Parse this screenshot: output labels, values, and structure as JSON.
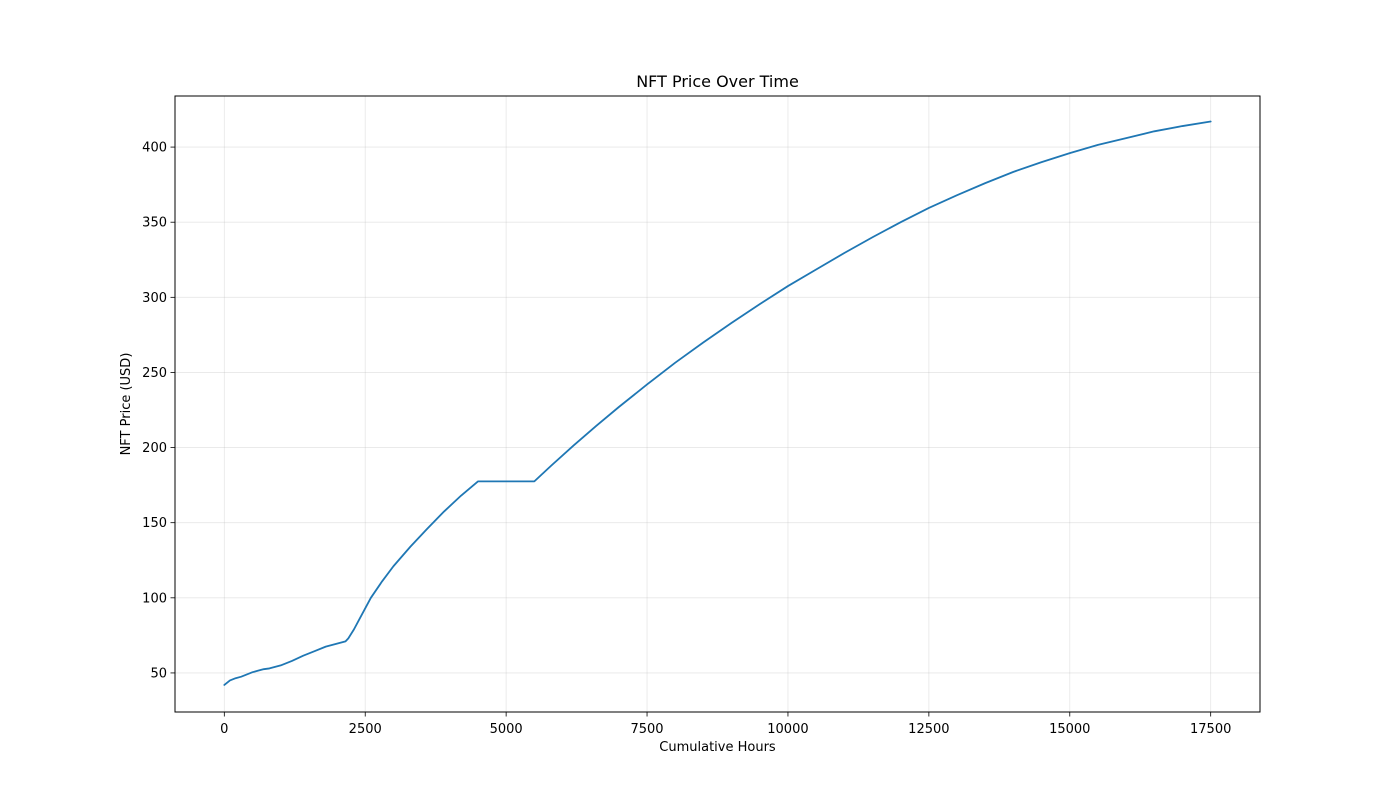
{
  "chart_data": {
    "type": "line",
    "title": "NFT Price Over Time",
    "xlabel": "Cumulative Hours",
    "ylabel": "NFT Price (USD)",
    "xlim": [
      -875,
      18375
    ],
    "ylim": [
      24,
      434
    ],
    "xticks": [
      0,
      2500,
      5000,
      7500,
      10000,
      12500,
      15000,
      17500
    ],
    "yticks": [
      50,
      100,
      150,
      200,
      250,
      300,
      350,
      400
    ],
    "xtick_labels": [
      "0",
      "2500",
      "5000",
      "7500",
      "10000",
      "12500",
      "15000",
      "17500"
    ],
    "ytick_labels": [
      "50",
      "100",
      "150",
      "200",
      "250",
      "300",
      "350",
      "400"
    ],
    "grid": true,
    "line_color": "#1f77b4",
    "series": [
      {
        "x": [
          0,
          100,
          200,
          300,
          400,
          500,
          600,
          700,
          800,
          900,
          1000,
          1200,
          1400,
          1600,
          1800,
          2000,
          2150,
          2200,
          2300,
          2400,
          2500,
          2600,
          2800,
          3000,
          3300,
          3600,
          3900,
          4200,
          4500,
          5000,
          5500,
          5800,
          6200,
          6600,
          7000,
          7500,
          8000,
          8500,
          9000,
          9500,
          10000,
          10500,
          11000,
          11500,
          12000,
          12500,
          13000,
          13500,
          14000,
          14500,
          15000,
          15500,
          16000,
          16500,
          17000,
          17500
        ],
        "y": [
          42,
          45,
          46.5,
          47.5,
          49,
          50.5,
          51.5,
          52.5,
          53,
          54,
          55,
          58,
          61.5,
          64.5,
          67.5,
          69.5,
          71,
          73,
          79,
          86,
          93,
          100,
          111,
          121,
          134,
          146,
          157.5,
          168,
          177.5,
          177.5,
          177.5,
          188,
          201.5,
          214.5,
          227,
          242,
          256.5,
          270,
          283,
          295.5,
          307.5,
          318.5,
          329.5,
          340,
          350,
          359.5,
          368,
          376,
          383.5,
          390,
          396,
          401.5,
          406,
          410.5,
          414,
          417
        ]
      }
    ]
  }
}
